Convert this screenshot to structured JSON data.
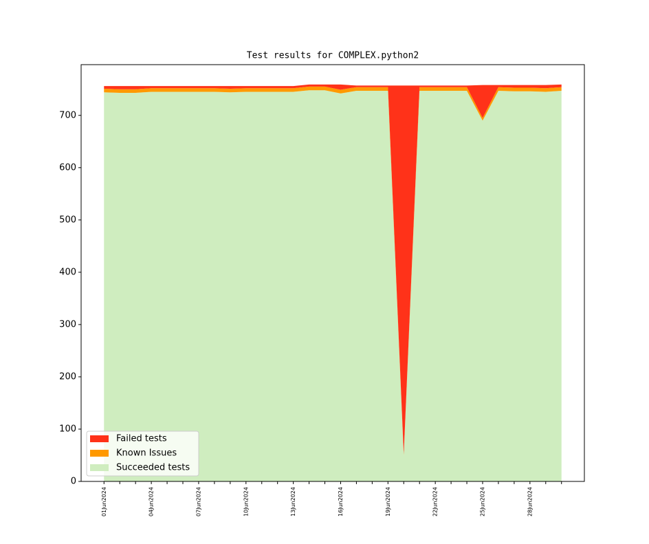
{
  "chart_data": {
    "type": "stacked_area",
    "title": "Test results for COMPLEX.python2",
    "categories": [
      "01Jun2024",
      null,
      null,
      "04Jun2024",
      null,
      null,
      "07Jun2024",
      null,
      null,
      "10Jun2024",
      null,
      null,
      "13Jun2024",
      null,
      null,
      "16Jun2024",
      null,
      null,
      "19Jun2024",
      null,
      null,
      "22Jun2024",
      null,
      null,
      "25Jun2024",
      null,
      null,
      "28Jun2024",
      null,
      null
    ],
    "series": [
      {
        "name": "Failed tests",
        "color": "#ff3219",
        "values": [
          5,
          6,
          6,
          4,
          4,
          4,
          4,
          4,
          5,
          4,
          4,
          4,
          4,
          4,
          4,
          10,
          3,
          3,
          3,
          705,
          3,
          3,
          3,
          3,
          63,
          4,
          5,
          5,
          6,
          5
        ]
      },
      {
        "name": "Known Issues",
        "color": "#ff9900",
        "values": [
          7,
          7,
          7,
          7,
          7,
          7,
          7,
          7,
          7,
          7,
          7,
          7,
          7,
          7,
          7,
          7,
          7,
          7,
          7,
          2,
          7,
          7,
          7,
          7,
          5,
          7,
          7,
          7,
          7,
          7
        ]
      },
      {
        "name": "Succeeded tests",
        "color": "#cfedbf",
        "values": [
          744,
          743,
          743,
          745,
          745,
          745,
          745,
          745,
          744,
          745,
          745,
          745,
          745,
          748,
          748,
          742,
          747,
          747,
          747,
          50,
          747,
          747,
          747,
          747,
          690,
          747,
          746,
          746,
          745,
          747
        ]
      }
    ],
    "ylim": [
      0,
      797
    ],
    "yticks": [
      0,
      100,
      200,
      300,
      400,
      500,
      600,
      700
    ],
    "legend": "lower left"
  }
}
